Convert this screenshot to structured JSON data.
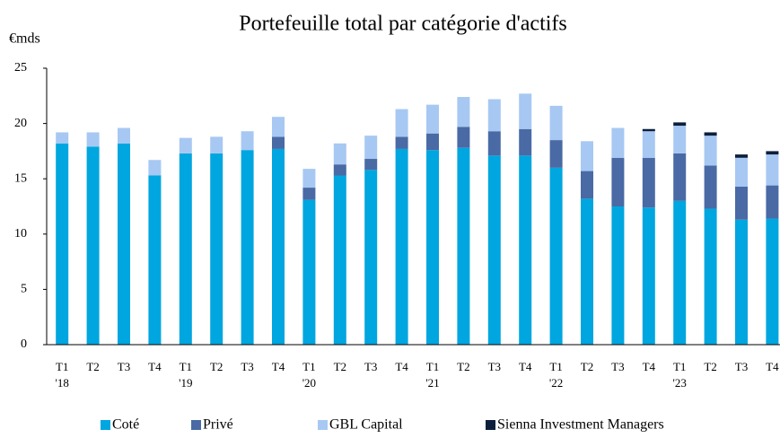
{
  "chart_data": {
    "type": "stacked_bar",
    "title": "Portefeuille total par catégorie d'actifs",
    "y_label": "€mds",
    "categories": [
      [
        "T1",
        "'18"
      ],
      [
        "T2"
      ],
      [
        "T3"
      ],
      [
        "T4"
      ],
      [
        "T1",
        "'19"
      ],
      [
        "T2"
      ],
      [
        "T3"
      ],
      [
        "T4"
      ],
      [
        "T1",
        "'20"
      ],
      [
        "T2"
      ],
      [
        "T3"
      ],
      [
        "T4"
      ],
      [
        "T1",
        "'21"
      ],
      [
        "T2"
      ],
      [
        "T3"
      ],
      [
        "T4"
      ],
      [
        "T1",
        "'22"
      ],
      [
        "T2"
      ],
      [
        "T3"
      ],
      [
        "T4"
      ],
      [
        "T1",
        "'23"
      ],
      [
        "T2"
      ],
      [
        "T3"
      ],
      [
        "T4"
      ]
    ],
    "series": [
      {
        "name": "Coté",
        "color": "#00a6e0",
        "values": [
          18.2,
          17.9,
          18.2,
          15.3,
          17.3,
          17.3,
          17.6,
          17.7,
          13.1,
          15.3,
          15.8,
          17.7,
          17.6,
          17.8,
          17.1,
          17.1,
          16.0,
          13.2,
          12.5,
          12.4,
          13.0,
          12.3,
          11.3,
          11.4
        ]
      },
      {
        "name": "Privé",
        "color": "#4a6aa5",
        "values": [
          0,
          0,
          0,
          0,
          0,
          0,
          0,
          1.1,
          1.1,
          1.0,
          1.0,
          1.1,
          1.5,
          1.9,
          2.2,
          2.4,
          2.5,
          2.5,
          4.4,
          4.5,
          4.3,
          3.9,
          3.0,
          3.0
        ]
      },
      {
        "name": "GBL Capital",
        "color": "#a7c8f2",
        "values": [
          1.0,
          1.3,
          1.4,
          1.4,
          1.4,
          1.5,
          1.7,
          1.8,
          1.7,
          1.9,
          2.1,
          2.5,
          2.6,
          2.7,
          2.9,
          3.2,
          3.1,
          2.7,
          2.7,
          2.4,
          2.5,
          2.7,
          2.6,
          2.8
        ]
      },
      {
        "name": "Sienna Investment Managers",
        "color": "#0d1f3c",
        "values": [
          0,
          0,
          0,
          0,
          0,
          0,
          0,
          0,
          0,
          0,
          0,
          0,
          0,
          0,
          0,
          0,
          0,
          0,
          0,
          0.2,
          0.3,
          0.3,
          0.3,
          0.3
        ]
      }
    ],
    "ylim": [
      0,
      25
    ],
    "yticks": [
      0,
      5,
      10,
      15,
      20,
      25
    ],
    "grid": false,
    "legend": "bottom"
  }
}
